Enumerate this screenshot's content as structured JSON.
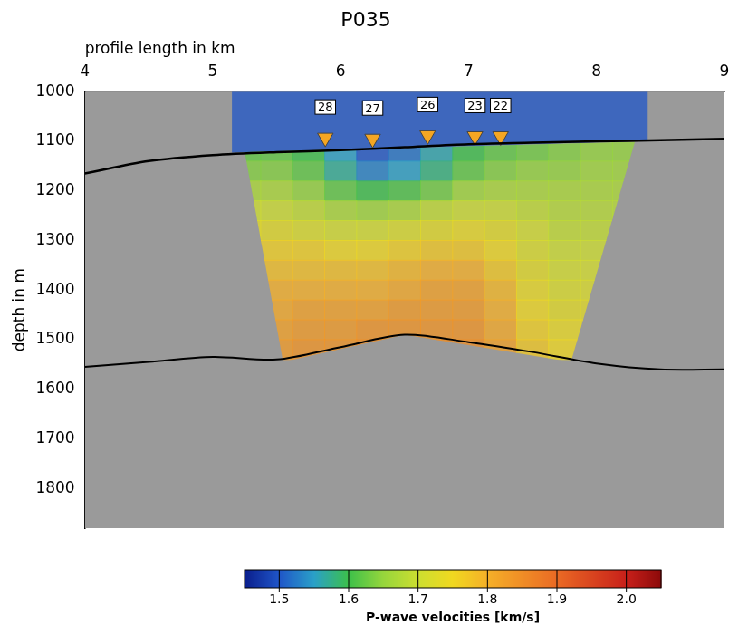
{
  "chart_data": {
    "type": "heatmap",
    "title": "P035",
    "x_label": "profile length in km",
    "y_label": "depth in m",
    "xlim": [
      4,
      9
    ],
    "xticks": [
      4,
      5,
      6,
      7,
      8,
      9
    ],
    "ylim": [
      1000,
      1880
    ],
    "yticks": [
      1000,
      1100,
      1200,
      1300,
      1400,
      1500,
      1600,
      1700,
      1800
    ],
    "grid": false,
    "velocity_model": {
      "x": [
        5.25,
        5.5,
        5.75,
        6,
        6.25,
        6.5,
        6.75,
        7,
        7.25,
        7.5,
        7.75,
        8,
        8.25
      ],
      "depth": [
        1120,
        1160,
        1200,
        1240,
        1280,
        1320,
        1360,
        1400,
        1440,
        1480,
        1520
      ],
      "velocity": [
        [
          1.62,
          1.62,
          1.6,
          1.55,
          1.5,
          1.52,
          1.56,
          1.6,
          1.62,
          1.63,
          1.64,
          1.65,
          1.65
        ],
        [
          1.64,
          1.64,
          1.62,
          1.57,
          1.53,
          1.55,
          1.58,
          1.62,
          1.64,
          1.65,
          1.65,
          1.66,
          1.66
        ],
        [
          1.67,
          1.67,
          1.65,
          1.62,
          1.6,
          1.61,
          1.63,
          1.66,
          1.67,
          1.67,
          1.67,
          1.67,
          1.67
        ],
        [
          1.7,
          1.7,
          1.69,
          1.67,
          1.66,
          1.67,
          1.69,
          1.7,
          1.7,
          1.69,
          1.68,
          1.68,
          1.68
        ],
        [
          1.73,
          1.73,
          1.72,
          1.71,
          1.71,
          1.72,
          1.73,
          1.74,
          1.73,
          1.71,
          1.69,
          1.69,
          1.69
        ],
        [
          1.76,
          1.76,
          1.76,
          1.75,
          1.75,
          1.76,
          1.77,
          1.77,
          1.75,
          1.72,
          1.7,
          1.7,
          1.7
        ],
        [
          1.78,
          1.78,
          1.78,
          1.78,
          1.78,
          1.79,
          1.8,
          1.8,
          1.77,
          1.73,
          1.71,
          1.71,
          1.71
        ],
        [
          1.8,
          1.8,
          1.8,
          1.8,
          1.8,
          1.81,
          1.82,
          1.82,
          1.79,
          1.74,
          1.72,
          1.72,
          1.72
        ],
        [
          1.81,
          1.81,
          1.82,
          1.82,
          1.82,
          1.83,
          1.83,
          1.83,
          1.8,
          1.75,
          1.73,
          1.73,
          1.73
        ],
        [
          1.82,
          1.82,
          1.83,
          1.83,
          1.84,
          1.84,
          1.84,
          1.84,
          1.81,
          1.76,
          1.74,
          1.74,
          1.74
        ],
        [
          1.83,
          1.83,
          1.84,
          1.84,
          1.85,
          1.85,
          1.85,
          1.85,
          1.82,
          1.77,
          1.75,
          1.75,
          1.75
        ]
      ],
      "region": {
        "x": [
          5.25,
          8.3,
          7.8,
          6.5,
          5.55
        ],
        "depth": [
          1122,
          1101,
          1545,
          1490,
          1545
        ]
      },
      "colorbar": {
        "label": "P-wave velocities [km/s]",
        "clim": [
          1.45,
          2.05
        ],
        "ticks": [
          1.5,
          1.6,
          1.7,
          1.8,
          1.9,
          {
            "value": 2,
            "label": "2.0"
          }
        ]
      }
    },
    "water": {
      "velocity": 1.5,
      "x": [
        5.15,
        8.4,
        8.4,
        5.15
      ],
      "depth": [
        1000,
        1000,
        1099,
        1123
      ]
    },
    "seafloor": {
      "x": [
        4,
        4.5,
        5,
        5.5,
        6,
        6.5,
        7,
        7.5,
        8,
        8.5,
        9
      ],
      "depth": [
        1165,
        1140,
        1128,
        1122,
        1118,
        1112,
        1106,
        1103,
        1100,
        1098,
        1095
      ],
      "color": "#000000"
    },
    "basement": {
      "x": [
        4,
        4.5,
        5,
        5.5,
        6,
        6.5,
        7,
        7.5,
        8,
        8.5,
        9
      ],
      "depth": [
        1555,
        1545,
        1535,
        1540,
        1515,
        1490,
        1505,
        1525,
        1548,
        1560,
        1560
      ],
      "color": "#000000"
    },
    "stations": {
      "labels": [
        "28",
        "27",
        "26",
        "23",
        "22"
      ],
      "x": [
        5.88,
        6.25,
        6.68,
        7.05,
        7.25
      ],
      "depth": [
        1093,
        1095,
        1088,
        1090,
        1090
      ],
      "color": "#f5a623",
      "marker": "triangle-down"
    }
  }
}
